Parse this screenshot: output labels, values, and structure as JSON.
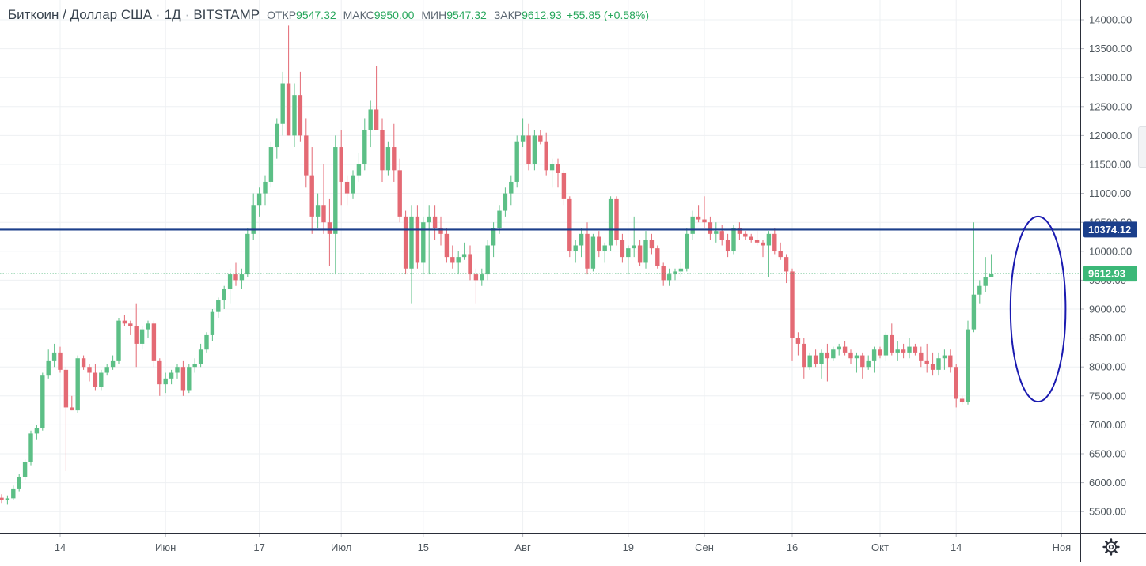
{
  "header": {
    "symbol": "Биткоин / Доллар США",
    "interval": "1Д",
    "exchange": "BITSTAMP",
    "ohlc": {
      "open_label": "ОТКР",
      "open": "9547.32",
      "high_label": "МАКС",
      "high": "9950.00",
      "low_label": "МИН",
      "low": "9547.32",
      "close_label": "ЗАКР",
      "close": "9612.93",
      "change": "+55.85 (+0.58%)"
    }
  },
  "colors": {
    "up": "#26a65b",
    "down": "#ef5350",
    "up_body": "#5cbf86",
    "down_body": "#e46a74",
    "resistance_line": "#1b3f8b",
    "last_price_line": "#26a65b",
    "ellipse": "#1a1ab0",
    "grid": "#eef0f3"
  },
  "chart_data": {
    "type": "candlestick",
    "y_axis": {
      "min": 5200,
      "max": 14250,
      "position": "right",
      "ticks": [
        "14000.00",
        "13500.00",
        "13000.00",
        "12500.00",
        "12000.00",
        "11500.00",
        "11000.00",
        "10500.00",
        "10000.00",
        "9500.00",
        "9000.00",
        "8500.00",
        "8000.00",
        "7500.00",
        "7000.00",
        "6500.00",
        "6000.00",
        "5500.00"
      ]
    },
    "x_axis": {
      "labels": [
        {
          "text": "14",
          "index": 10
        },
        {
          "text": "Июн",
          "index": 28
        },
        {
          "text": "17",
          "index": 44
        },
        {
          "text": "Июл",
          "index": 58
        },
        {
          "text": "15",
          "index": 72
        },
        {
          "text": "Авг",
          "index": 89
        },
        {
          "text": "19",
          "index": 107
        },
        {
          "text": "Сен",
          "index": 120
        },
        {
          "text": "16",
          "index": 135
        },
        {
          "text": "Окт",
          "index": 150
        },
        {
          "text": "14",
          "index": 163
        },
        {
          "text": "Ноя",
          "index": 181
        }
      ]
    },
    "grid": true,
    "horizontal_lines": [
      {
        "price": 10374.12,
        "label": "10374.12",
        "style": "solid"
      },
      {
        "price": 9612.93,
        "label": "9612.93",
        "style": "dotted"
      }
    ],
    "annotations": [
      {
        "type": "ellipse",
        "from_index": 172,
        "to_index": 181,
        "price_low": 7400,
        "price_high": 10600
      }
    ],
    "candles": [
      [
        5740,
        5800,
        5650,
        5700
      ],
      [
        5700,
        5780,
        5620,
        5730
      ],
      [
        5730,
        5950,
        5700,
        5900
      ],
      [
        5900,
        6150,
        5850,
        6100
      ],
      [
        6100,
        6400,
        6050,
        6350
      ],
      [
        6350,
        6900,
        6300,
        6850
      ],
      [
        6850,
        7000,
        6750,
        6950
      ],
      [
        6950,
        7900,
        6900,
        7850
      ],
      [
        7850,
        8300,
        7800,
        8100
      ],
      [
        8100,
        8400,
        8000,
        8250
      ],
      [
        8250,
        8350,
        7900,
        7950
      ],
      [
        7950,
        8000,
        6200,
        7300
      ],
      [
        7300,
        7500,
        7250,
        7250
      ],
      [
        7250,
        8200,
        7200,
        8150
      ],
      [
        8150,
        8200,
        7950,
        8000
      ],
      [
        8000,
        8050,
        7750,
        7900
      ],
      [
        7900,
        8050,
        7600,
        7650
      ],
      [
        7650,
        7950,
        7600,
        7900
      ],
      [
        7900,
        8050,
        7850,
        8000
      ],
      [
        8000,
        8200,
        7950,
        8100
      ],
      [
        8100,
        8850,
        8050,
        8800
      ],
      [
        8800,
        8900,
        8700,
        8750
      ],
      [
        8750,
        8800,
        8550,
        8700
      ],
      [
        8700,
        9100,
        8000,
        8400
      ],
      [
        8400,
        8700,
        8300,
        8650
      ],
      [
        8650,
        8800,
        8500,
        8750
      ],
      [
        8750,
        8800,
        8000,
        8100
      ],
      [
        8100,
        8150,
        7500,
        7700
      ],
      [
        7700,
        7900,
        7550,
        7800
      ],
      [
        7800,
        7950,
        7700,
        7900
      ],
      [
        7900,
        8050,
        7800,
        8000
      ],
      [
        8000,
        8100,
        7500,
        7600
      ],
      [
        7600,
        8050,
        7550,
        8000
      ],
      [
        8000,
        8150,
        7900,
        8050
      ],
      [
        8050,
        8400,
        8000,
        8300
      ],
      [
        8300,
        8600,
        8250,
        8550
      ],
      [
        8550,
        9000,
        8450,
        8950
      ],
      [
        8950,
        9200,
        8850,
        9150
      ],
      [
        9150,
        9400,
        9000,
        9350
      ],
      [
        9350,
        9700,
        9100,
        9600
      ],
      [
        9600,
        9800,
        9400,
        9500
      ],
      [
        9500,
        9700,
        9350,
        9600
      ],
      [
        9600,
        10400,
        9550,
        10300
      ],
      [
        10300,
        11000,
        10200,
        10800
      ],
      [
        10800,
        11100,
        10600,
        11000
      ],
      [
        11000,
        11300,
        10800,
        11200
      ],
      [
        11200,
        11900,
        11100,
        11800
      ],
      [
        11800,
        12300,
        11600,
        12200
      ],
      [
        12200,
        13100,
        12000,
        12900
      ],
      [
        12900,
        13900,
        12000,
        12000
      ],
      [
        12000,
        12900,
        11800,
        12700
      ],
      [
        12700,
        13100,
        11900,
        12000
      ],
      [
        12000,
        12300,
        11100,
        11300
      ],
      [
        11300,
        11800,
        10300,
        10600
      ],
      [
        10600,
        11000,
        10400,
        10800
      ],
      [
        10800,
        11500,
        10300,
        10500
      ],
      [
        10500,
        10900,
        9750,
        10300
      ],
      [
        10300,
        12000,
        9600,
        11800
      ],
      [
        11800,
        12100,
        10800,
        11200
      ],
      [
        11200,
        11300,
        10800,
        11000
      ],
      [
        11000,
        11400,
        10900,
        11300
      ],
      [
        11300,
        11700,
        11200,
        11500
      ],
      [
        11500,
        12300,
        11400,
        12100
      ],
      [
        12100,
        12600,
        11800,
        12450
      ],
      [
        12450,
        13200,
        12100,
        12100
      ],
      [
        12100,
        12300,
        11200,
        11400
      ],
      [
        11400,
        11900,
        11300,
        11800
      ],
      [
        11800,
        12200,
        11200,
        11400
      ],
      [
        11400,
        11600,
        10500,
        10600
      ],
      [
        10600,
        10700,
        9600,
        9700
      ],
      [
        9700,
        10800,
        9100,
        10600
      ],
      [
        10600,
        10800,
        9700,
        9800
      ],
      [
        9800,
        10600,
        9600,
        10500
      ],
      [
        10500,
        10800,
        9600,
        10600
      ],
      [
        10600,
        10800,
        10200,
        10400
      ],
      [
        10400,
        10600,
        10100,
        10300
      ],
      [
        10300,
        10400,
        9800,
        9900
      ],
      [
        9900,
        10100,
        9700,
        9800
      ],
      [
        9800,
        10000,
        9600,
        9900
      ],
      [
        9900,
        10150,
        9850,
        9950
      ],
      [
        9950,
        10100,
        9500,
        9600
      ],
      [
        9600,
        9700,
        9100,
        9500
      ],
      [
        9500,
        9700,
        9400,
        9600
      ],
      [
        9600,
        10200,
        9500,
        10100
      ],
      [
        10100,
        10500,
        9900,
        10400
      ],
      [
        10400,
        10800,
        10300,
        10700
      ],
      [
        10700,
        11100,
        10600,
        11000
      ],
      [
        11000,
        11300,
        10800,
        11200
      ],
      [
        11200,
        12000,
        11100,
        11900
      ],
      [
        11900,
        12300,
        11800,
        12000
      ],
      [
        12000,
        12200,
        11400,
        11500
      ],
      [
        11500,
        12100,
        11400,
        12000
      ],
      [
        12000,
        12100,
        11850,
        11900
      ],
      [
        11900,
        12050,
        11300,
        11400
      ],
      [
        11400,
        11600,
        11100,
        11500
      ],
      [
        11500,
        11600,
        11100,
        11350
      ],
      [
        11350,
        11400,
        10800,
        10900
      ],
      [
        10900,
        10950,
        9900,
        10000
      ],
      [
        10000,
        10200,
        9800,
        10100
      ],
      [
        10100,
        10400,
        9900,
        10300
      ],
      [
        10300,
        10500,
        9600,
        9700
      ],
      [
        9700,
        10300,
        9650,
        10250
      ],
      [
        10250,
        10350,
        9900,
        10000
      ],
      [
        10000,
        10150,
        9800,
        10100
      ],
      [
        10100,
        10950,
        10000,
        10900
      ],
      [
        10900,
        10950,
        10100,
        10200
      ],
      [
        10200,
        10300,
        9800,
        9900
      ],
      [
        9900,
        10100,
        9600,
        10050
      ],
      [
        10050,
        10600,
        9900,
        10100
      ],
      [
        10100,
        10200,
        9750,
        9800
      ],
      [
        9800,
        10350,
        9700,
        10200
      ],
      [
        10200,
        10300,
        9950,
        10050
      ],
      [
        10050,
        10100,
        9700,
        9750
      ],
      [
        9750,
        9800,
        9400,
        9500
      ],
      [
        9500,
        9700,
        9400,
        9600
      ],
      [
        9600,
        9700,
        9500,
        9650
      ],
      [
        9650,
        9800,
        9550,
        9700
      ],
      [
        9700,
        10400,
        9650,
        10300
      ],
      [
        10300,
        10700,
        10200,
        10600
      ],
      [
        10600,
        10800,
        10500,
        10550
      ],
      [
        10550,
        10950,
        10400,
        10500
      ],
      [
        10500,
        10600,
        10200,
        10300
      ],
      [
        10300,
        10500,
        10150,
        10350
      ],
      [
        10350,
        10450,
        10100,
        10200
      ],
      [
        10200,
        10300,
        9900,
        10000
      ],
      [
        10000,
        10450,
        9950,
        10400
      ],
      [
        10400,
        10500,
        10200,
        10300
      ],
      [
        10300,
        10350,
        10200,
        10250
      ],
      [
        10250,
        10300,
        10150,
        10200
      ],
      [
        10200,
        10350,
        10100,
        10150
      ],
      [
        10150,
        10200,
        9900,
        10100
      ],
      [
        10100,
        10350,
        9550,
        10300
      ],
      [
        10300,
        10400,
        9950,
        10000
      ],
      [
        10000,
        10150,
        9850,
        9900
      ],
      [
        9900,
        9950,
        9450,
        9650
      ],
      [
        9650,
        9700,
        8100,
        8500
      ],
      [
        8500,
        8600,
        8200,
        8400
      ],
      [
        8400,
        8500,
        7800,
        8000
      ],
      [
        8000,
        8250,
        7950,
        8200
      ],
      [
        8200,
        8300,
        8000,
        8050
      ],
      [
        8050,
        8300,
        7800,
        8250
      ],
      [
        8250,
        8400,
        7750,
        8150
      ],
      [
        8150,
        8350,
        8100,
        8300
      ],
      [
        8300,
        8400,
        8200,
        8350
      ],
      [
        8350,
        8450,
        8200,
        8250
      ],
      [
        8250,
        8300,
        8050,
        8150
      ],
      [
        8150,
        8250,
        7900,
        8200
      ],
      [
        8200,
        8250,
        7800,
        8000
      ],
      [
        8000,
        8200,
        7950,
        8100
      ],
      [
        8100,
        8350,
        7900,
        8300
      ],
      [
        8300,
        8350,
        8150,
        8200
      ],
      [
        8200,
        8600,
        8100,
        8550
      ],
      [
        8550,
        8750,
        8200,
        8250
      ],
      [
        8250,
        8450,
        8100,
        8300
      ],
      [
        8300,
        8400,
        8150,
        8250
      ],
      [
        8250,
        8500,
        8150,
        8350
      ],
      [
        8350,
        8400,
        8200,
        8250
      ],
      [
        8250,
        8350,
        8000,
        8100
      ],
      [
        8100,
        8400,
        7900,
        8050
      ],
      [
        8050,
        8250,
        7850,
        7950
      ],
      [
        7950,
        8250,
        7850,
        8150
      ],
      [
        8150,
        8300,
        7950,
        8200
      ],
      [
        8200,
        8300,
        7900,
        8000
      ],
      [
        8000,
        8050,
        7300,
        7450
      ],
      [
        7450,
        7500,
        7350,
        7400
      ],
      [
        7400,
        8800,
        7350,
        8650
      ],
      [
        8650,
        10500,
        8600,
        9250
      ],
      [
        9250,
        9500,
        9100,
        9400
      ],
      [
        9400,
        9900,
        9300,
        9550
      ],
      [
        9547.32,
        9950,
        9547.32,
        9612.93
      ]
    ]
  }
}
